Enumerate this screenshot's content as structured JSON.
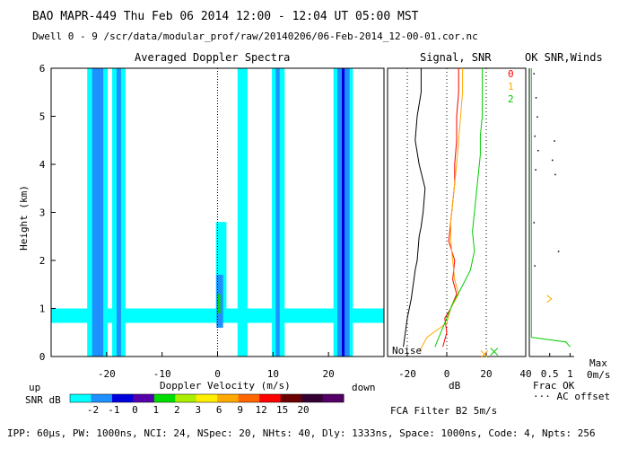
{
  "header": {
    "title": "BAO  MAPR-449  Thu Feb 06 2014 12:00 - 12:04 UT 05:00 MST",
    "dwell": "Dwell  0 -  9   /scr/data/modular_prof/raw/20140206/06-Feb-2014_12-00-01.cor.nc"
  },
  "spectra_panel": {
    "title": "Averaged Doppler Spectra",
    "ylabel": "Height (km)",
    "xlabel": "Doppler Velocity (m/s)",
    "up_label": "up",
    "down_label": "down"
  },
  "signal_panel": {
    "title": "Signal, SNR",
    "xlabel": "dB",
    "noise_label": "Noise",
    "filter_label": "FCA Filter B2  5m/s",
    "legend": [
      "0",
      "1",
      "2"
    ]
  },
  "ok_panel": {
    "title": "OK SNR,Winds",
    "frac_ok_label": "Frac OK",
    "ac_offset_label": "··· AC offset",
    "max_label": "Max",
    "max_value": "0m/s"
  },
  "colorbar": {
    "label": "SNR dB",
    "ticks": [
      "-2",
      "-1",
      "0",
      "1",
      "2",
      "3",
      "6",
      "9",
      "12",
      "15",
      "20"
    ],
    "colors": [
      "#00ffff",
      "#1e90ff",
      "#0000dd",
      "#5500aa",
      "#00dd00",
      "#aaee00",
      "#ffee00",
      "#ffaa00",
      "#ff6600",
      "#ff0000",
      "#6a0000",
      "#320032",
      "#550066"
    ]
  },
  "footer": {
    "params": "IPP: 60µs, PW: 1000ns, NCI: 24, NSpec: 20, NHts: 40, Dly: 1333ns, Space: 1000ns, Code: 4, Npts: 256"
  },
  "chart_data": [
    {
      "type": "heatmap",
      "title": "Averaged Doppler Spectra",
      "xlabel": "Doppler Velocity (m/s)",
      "ylabel": "Height (km)",
      "xlim": [
        -30,
        30
      ],
      "ylim": [
        0,
        6
      ],
      "xticks": [
        -20,
        -10,
        0,
        10,
        20
      ],
      "yticks": [
        0,
        1,
        2,
        3,
        4,
        5,
        6
      ],
      "zero_line_x": 0,
      "full_columns": [
        {
          "x0": -23.5,
          "x1": -19.8,
          "band": 0
        },
        {
          "x0": -22.6,
          "x1": -20.6,
          "band": 1
        },
        {
          "x0": -19.0,
          "x1": -16.6,
          "band": 0
        },
        {
          "x0": -18.2,
          "x1": -17.4,
          "band": 1
        },
        {
          "x0": 3.6,
          "x1": 5.4,
          "band": 0
        },
        {
          "x0": 9.8,
          "x1": 12.1,
          "band": 0
        },
        {
          "x0": 10.5,
          "x1": 11.2,
          "band": 1
        },
        {
          "x0": 20.9,
          "x1": 24.4,
          "band": 0
        },
        {
          "x0": 21.6,
          "x1": 23.8,
          "band": 1
        },
        {
          "x0": 22.4,
          "x1": 22.9,
          "band": 2
        }
      ],
      "low_layer": {
        "y0": 0.7,
        "y1": 1.0,
        "band": 0
      },
      "near_zero_echo": [
        {
          "x0": -0.3,
          "x1": 1.6,
          "y0": 0.8,
          "y1": 2.8,
          "band": 0
        },
        {
          "x0": -0.2,
          "x1": 1.0,
          "y0": 0.6,
          "y1": 1.7,
          "band": 1
        },
        {
          "x0": 0.1,
          "x1": 0.5,
          "y0": 0.9,
          "y1": 1.3,
          "band": 4
        }
      ]
    },
    {
      "type": "line",
      "title": "Signal, SNR",
      "xlabel": "dB",
      "xlim": [
        -30,
        40
      ],
      "ylim": [
        0,
        6
      ],
      "xticks": [
        -20,
        0,
        20,
        40
      ],
      "series": [
        {
          "name": "noise",
          "color": "#000000",
          "x": [
            -22,
            -21,
            -20,
            -19,
            -18,
            -17,
            -16,
            -15,
            -14,
            -13,
            -12,
            -11,
            -14,
            -16,
            -15,
            -13,
            -13,
            -13,
            -12,
            -11
          ],
          "y": [
            0.2,
            0.5,
            0.8,
            1.0,
            1.2,
            1.5,
            1.8,
            2.0,
            2.5,
            2.7,
            3.0,
            3.5,
            4.0,
            4.5,
            5.0,
            5.5,
            5.8,
            6.0,
            6.0,
            6.0
          ]
        },
        {
          "name": "0",
          "color": "#ff0000",
          "x": [
            -2,
            0,
            -1,
            2,
            5,
            3,
            4,
            1,
            2,
            3,
            4,
            4,
            5,
            5,
            6,
            6,
            6
          ],
          "y": [
            0.2,
            0.5,
            0.8,
            1.0,
            1.3,
            1.6,
            2.0,
            2.4,
            2.8,
            3.2,
            3.6,
            4.0,
            4.5,
            5.0,
            5.5,
            5.8,
            6.0
          ]
        },
        {
          "name": "1",
          "color": "#ffaa00",
          "x": [
            -14,
            -10,
            0,
            2,
            6,
            4,
            3,
            2,
            2,
            3,
            4,
            5,
            6,
            7,
            8,
            8
          ],
          "y": [
            0.1,
            0.4,
            0.7,
            1.0,
            1.3,
            1.6,
            2.0,
            2.4,
            2.8,
            3.2,
            3.6,
            4.0,
            4.5,
            5.0,
            5.5,
            6.0
          ]
        },
        {
          "name": "2",
          "color": "#00cc00",
          "x": [
            -6,
            -3,
            0,
            3,
            7,
            12,
            14,
            13,
            14,
            15,
            16,
            17,
            17,
            18,
            18,
            18
          ],
          "y": [
            0.2,
            0.5,
            0.8,
            1.1,
            1.4,
            1.8,
            2.2,
            2.6,
            3.0,
            3.4,
            3.8,
            4.2,
            4.6,
            5.0,
            5.5,
            6.0
          ]
        }
      ],
      "noise_marks": [
        {
          "x": 19,
          "y": 0.05,
          "color": "#ffaa00"
        },
        {
          "x": 24,
          "y": 0.1,
          "color": "#00cc00"
        }
      ]
    },
    {
      "type": "scatter",
      "title": "OK SNR,Winds",
      "xlabel": "Frac OK",
      "xlim": [
        0,
        1.1
      ],
      "ylim": [
        0,
        6
      ],
      "xtick_labels": [
        "0.5",
        "1"
      ],
      "frac_ok_line": {
        "color": "#00cc00",
        "x": [
          0.05,
          0.05,
          0.05,
          0.05,
          0.05,
          0.05,
          0.05,
          0.05,
          0.05,
          0.05,
          0.05,
          0.05,
          0.9,
          1.0
        ],
        "y": [
          0.4,
          1.0,
          1.5,
          2.0,
          2.5,
          3.0,
          3.5,
          4.0,
          4.5,
          5.0,
          5.5,
          6.0,
          0.3,
          0.2
        ]
      },
      "ac_offset_points": {
        "color": "#000000",
        "x": [
          0.1,
          0.15,
          0.18,
          0.12,
          0.2,
          0.14,
          0.6,
          0.55,
          0.62,
          0.7,
          0.1,
          0.12
        ],
        "y": [
          5.9,
          5.4,
          5.0,
          4.6,
          4.3,
          3.9,
          4.5,
          4.1,
          3.8,
          2.2,
          2.8,
          1.9
        ]
      },
      "winds_marks": [
        {
          "x": 0.5,
          "y": 1.2,
          "color": "#ffaa00"
        }
      ]
    }
  ]
}
